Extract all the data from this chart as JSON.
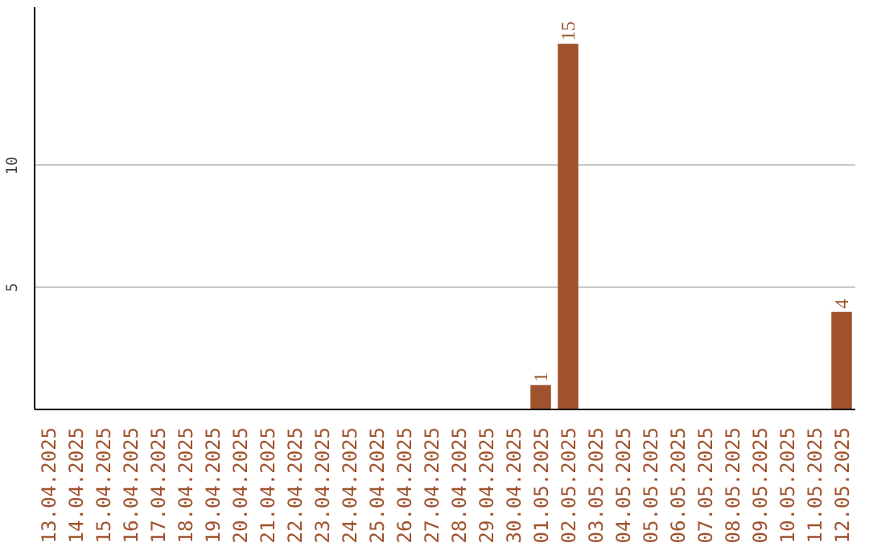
{
  "chart_data": {
    "type": "bar",
    "categories": [
      "13.04.2025",
      "14.04.2025",
      "15.04.2025",
      "16.04.2025",
      "17.04.2025",
      "18.04.2025",
      "19.04.2025",
      "20.04.2025",
      "21.04.2025",
      "22.04.2025",
      "23.04.2025",
      "24.04.2025",
      "25.04.2025",
      "26.04.2025",
      "27.04.2025",
      "28.04.2025",
      "29.04.2025",
      "30.04.2025",
      "01.05.2025",
      "02.05.2025",
      "03.05.2025",
      "04.05.2025",
      "05.05.2025",
      "06.05.2025",
      "07.05.2025",
      "08.05.2025",
      "09.05.2025",
      "10.05.2025",
      "11.05.2025",
      "12.05.2025"
    ],
    "values": [
      0,
      0,
      0,
      0,
      0,
      0,
      0,
      0,
      0,
      0,
      0,
      0,
      0,
      0,
      0,
      0,
      0,
      0,
      1,
      15,
      0,
      0,
      0,
      0,
      0,
      0,
      0,
      0,
      0,
      4
    ],
    "value_labels": [
      null,
      null,
      null,
      null,
      null,
      null,
      null,
      null,
      null,
      null,
      null,
      null,
      null,
      null,
      null,
      null,
      null,
      null,
      "1",
      "15",
      null,
      null,
      null,
      null,
      null,
      null,
      null,
      null,
      null,
      "4"
    ],
    "color": "#a0522d",
    "ylim": [
      0,
      16.5
    ],
    "yticks": [
      5,
      10
    ],
    "grid": "y"
  }
}
